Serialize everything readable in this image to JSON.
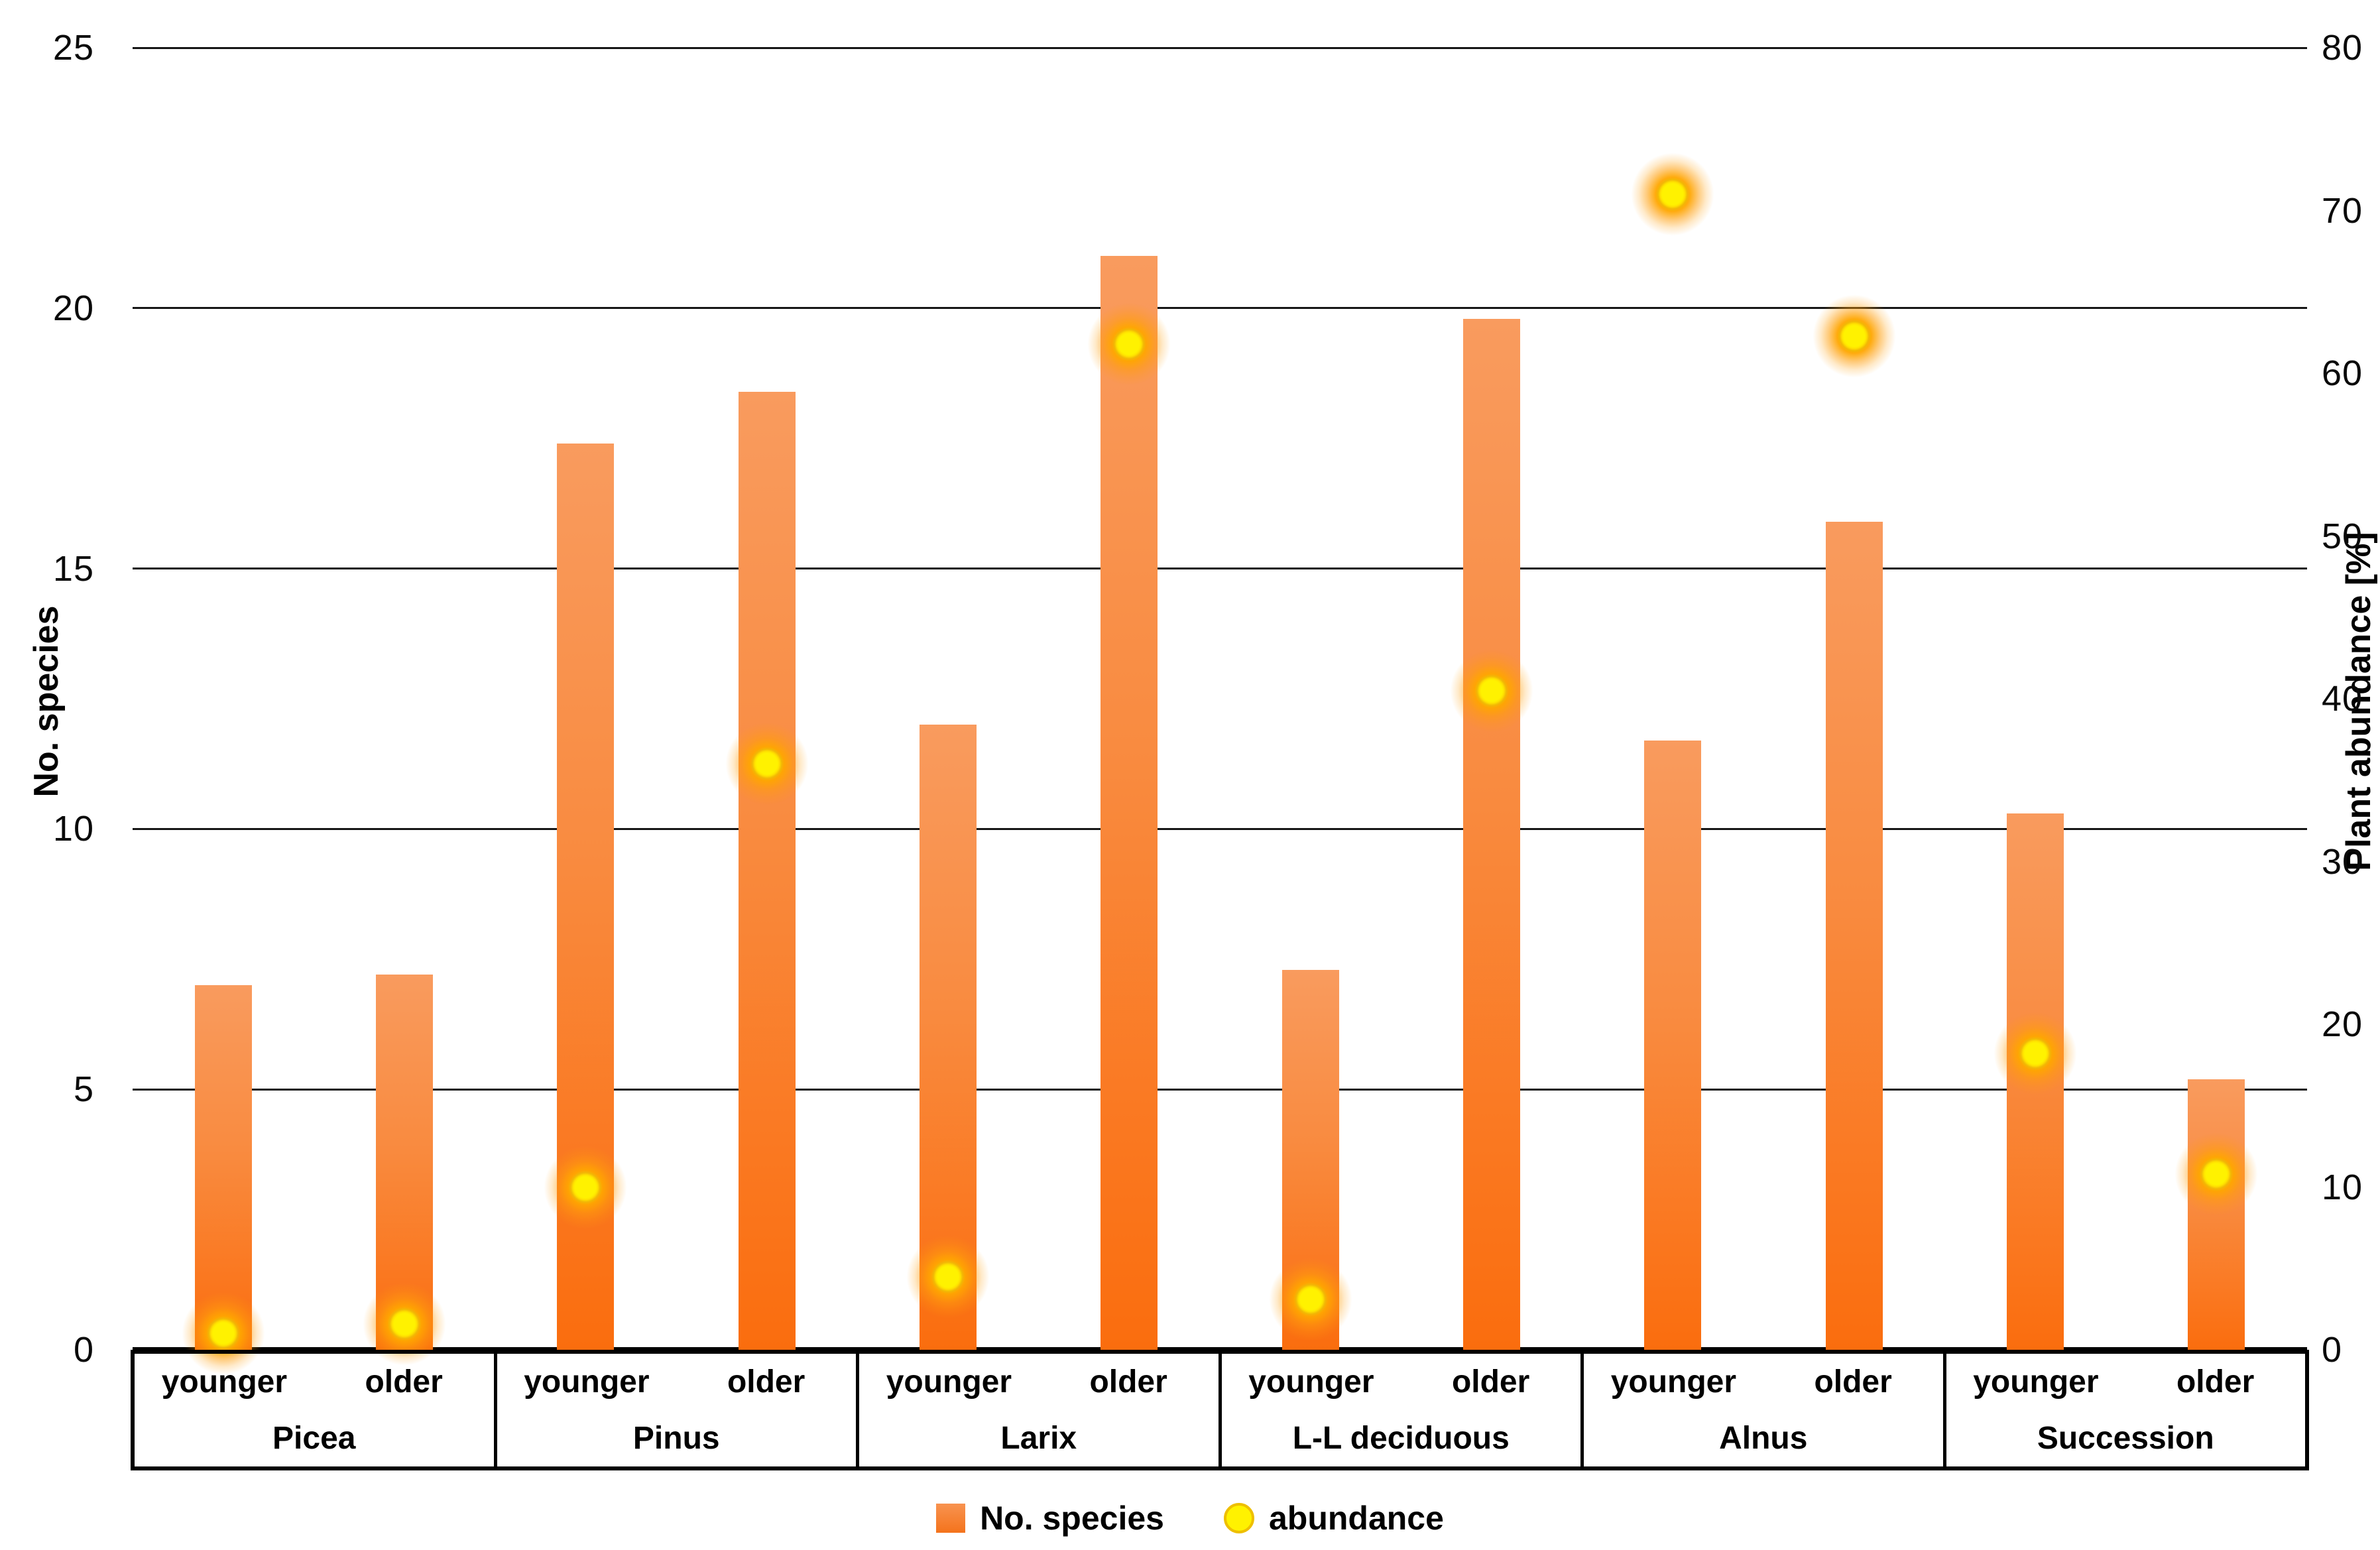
{
  "chart_data": {
    "type": "bar",
    "subtype": "combo-bar-scatter",
    "title": "",
    "groups": [
      "Picea",
      "Pinus",
      "Larix",
      "L-L deciduous",
      "Alnus",
      "Succession"
    ],
    "age_labels": [
      "younger",
      "older"
    ],
    "categories": [
      "Picea younger",
      "Picea older",
      "Pinus younger",
      "Pinus older",
      "Larix younger",
      "Larix older",
      "L-L deciduous younger",
      "L-L deciduous older",
      "Alnus younger",
      "Alnus older",
      "Succession younger",
      "Succession older"
    ],
    "series": [
      {
        "name": "No. species",
        "type": "bar",
        "axis": "left",
        "values": [
          7.0,
          7.2,
          17.4,
          18.4,
          12.0,
          21.0,
          7.3,
          19.8,
          11.7,
          15.9,
          10.3,
          5.2
        ]
      },
      {
        "name": "abundance",
        "type": "scatter",
        "axis": "right",
        "values": [
          1.0,
          1.6,
          10.0,
          36.0,
          4.5,
          61.8,
          3.1,
          40.5,
          71.0,
          62.3,
          18.2,
          10.8
        ]
      }
    ],
    "left_axis": {
      "title": "No. species",
      "min": 0,
      "max": 25,
      "step": 5,
      "ticks": [
        0,
        5,
        10,
        15,
        20,
        25
      ]
    },
    "right_axis": {
      "title": "Plant abundance [%]",
      "min": 0,
      "max": 80,
      "step": 10,
      "ticks": [
        0,
        10,
        20,
        30,
        40,
        50,
        60,
        70,
        80
      ]
    },
    "grid": "horizontal lines at left-axis steps, plot background white",
    "legend_position": "bottom-center",
    "legend": [
      {
        "label": "No. species",
        "marker": "square",
        "color": "#f4731c"
      },
      {
        "label": "abundance",
        "marker": "circle",
        "color": "#fff200"
      }
    ],
    "colors": {
      "bar_top": "#f99b5e",
      "bar_bottom": "#fa6d0e",
      "dot_core": "#fff200",
      "dot_glow": "#ffa00a",
      "gridline": "#161616",
      "axis_line": "#000000"
    }
  }
}
